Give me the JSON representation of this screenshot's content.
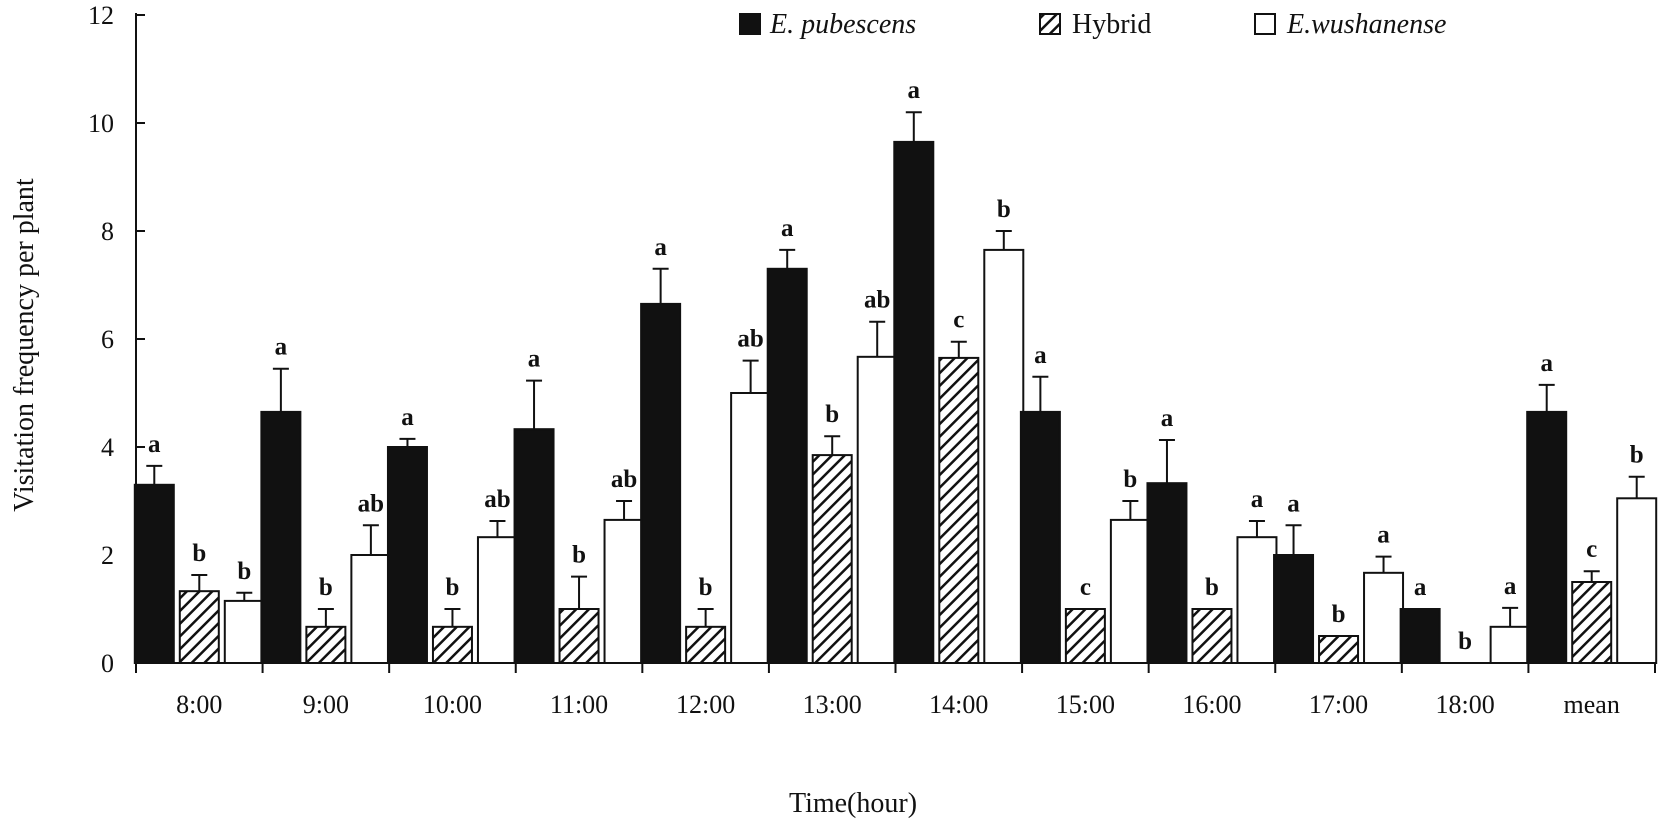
{
  "chart_data": {
    "type": "bar",
    "title": "",
    "xlabel": "Time(hour)",
    "ylabel": "Visitation frequency per plant",
    "ylim": [
      0,
      12
    ],
    "yticks": [
      "0",
      "2",
      "4",
      "6",
      "8",
      "10",
      "12"
    ],
    "legend_position": "top-right",
    "categories": [
      "8:00",
      "9:00",
      "10:00",
      "11:00",
      "12:00",
      "13:00",
      "14:00",
      "15:00",
      "16:00",
      "17:00",
      "18:00",
      "mean"
    ],
    "series": [
      {
        "name": "E. pubescens",
        "style": "solid",
        "italic": true,
        "values": [
          3.3,
          4.65,
          4.0,
          4.33,
          6.65,
          7.3,
          9.65,
          4.65,
          3.33,
          2.0,
          1.0,
          4.65
        ],
        "errors": [
          0.35,
          0.8,
          0.15,
          0.9,
          0.65,
          0.35,
          0.55,
          0.65,
          0.8,
          0.55,
          0.0,
          0.5
        ],
        "letters": [
          "a",
          "a",
          "a",
          "a",
          "a",
          "a",
          "a",
          "a",
          "a",
          "a",
          "a",
          "a"
        ]
      },
      {
        "name": "Hybrid",
        "style": "hatched",
        "italic": false,
        "values": [
          1.33,
          0.67,
          0.67,
          1.0,
          0.67,
          3.85,
          5.65,
          1.0,
          1.0,
          0.5,
          0.0,
          1.5
        ],
        "errors": [
          0.3,
          0.33,
          0.33,
          0.6,
          0.33,
          0.35,
          0.3,
          0.0,
          0.0,
          0.0,
          0.0,
          0.2
        ],
        "letters": [
          "b",
          "b",
          "b",
          "b",
          "b",
          "b",
          "c",
          "c",
          "b",
          "b",
          "b",
          "c"
        ]
      },
      {
        "name": "E.wushanense",
        "style": "open",
        "italic": true,
        "values": [
          1.15,
          2.0,
          2.33,
          2.65,
          5.0,
          5.67,
          7.65,
          2.65,
          2.33,
          1.67,
          0.67,
          3.05
        ],
        "errors": [
          0.15,
          0.55,
          0.3,
          0.35,
          0.6,
          0.65,
          0.35,
          0.35,
          0.3,
          0.3,
          0.35,
          0.4
        ],
        "letters": [
          "b",
          "ab",
          "ab",
          "ab",
          "ab",
          "ab",
          "b",
          "b",
          "a",
          "a",
          "a",
          "b"
        ]
      }
    ]
  }
}
